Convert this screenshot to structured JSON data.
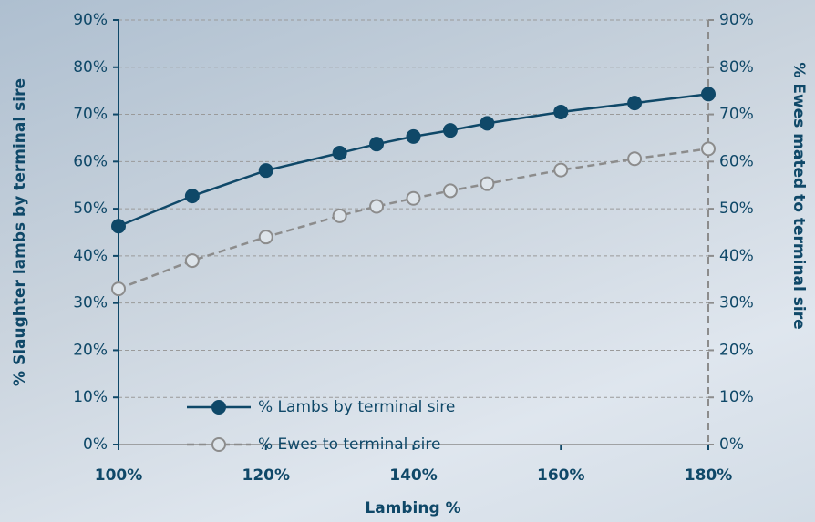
{
  "chart_data": {
    "type": "line",
    "x_label": "Lambing %",
    "y_label": "% Slaughter lambs by terminal sire",
    "y2_label": "% Ewes mated to terminal sire",
    "x": [
      100,
      110,
      120,
      130,
      135,
      140,
      145,
      150,
      160,
      170,
      180
    ],
    "xlim": [
      100,
      180
    ],
    "xticks": [
      {
        "value": 100,
        "label": "100%"
      },
      {
        "value": 120,
        "label": "120%"
      },
      {
        "value": 140,
        "label": "140%"
      },
      {
        "value": 160,
        "label": "160%"
      },
      {
        "value": 180,
        "label": "180%"
      }
    ],
    "ylim": [
      0,
      90
    ],
    "yticks": [
      {
        "value": 0,
        "label": "0%"
      },
      {
        "value": 10,
        "label": "10%"
      },
      {
        "value": 20,
        "label": "20%"
      },
      {
        "value": 30,
        "label": "30%"
      },
      {
        "value": 40,
        "label": "40%"
      },
      {
        "value": 50,
        "label": "50%"
      },
      {
        "value": 60,
        "label": "60%"
      },
      {
        "value": 70,
        "label": "70%"
      },
      {
        "value": 80,
        "label": "80%"
      },
      {
        "value": 90,
        "label": "90%"
      }
    ],
    "y2lim": [
      0,
      90
    ],
    "y2ticks": [
      {
        "value": 0,
        "label": "0%"
      },
      {
        "value": 10,
        "label": "10%"
      },
      {
        "value": 20,
        "label": "20%"
      },
      {
        "value": 30,
        "label": "30%"
      },
      {
        "value": 40,
        "label": "40%"
      },
      {
        "value": 50,
        "label": "50%"
      },
      {
        "value": 60,
        "label": "60%"
      },
      {
        "value": 70,
        "label": "70%"
      },
      {
        "value": 80,
        "label": "80%"
      },
      {
        "value": 90,
        "label": "90%"
      }
    ],
    "grid": true,
    "series": [
      {
        "name": "% Lambs by terminal sire",
        "color": "#0f4868",
        "values": [
          46.3,
          52.7,
          58.1,
          61.8,
          63.7,
          65.3,
          66.6,
          68.1,
          70.5,
          72.4,
          74.3
        ]
      },
      {
        "name": "% Ewes to terminal sire",
        "color": "#8c8c8c",
        "axis": "y2",
        "dashed": true,
        "marker": "open",
        "values": [
          33,
          39,
          44,
          48.5,
          50.5,
          52.2,
          53.8,
          55.3,
          58.2,
          60.6,
          62.7
        ]
      }
    ]
  }
}
